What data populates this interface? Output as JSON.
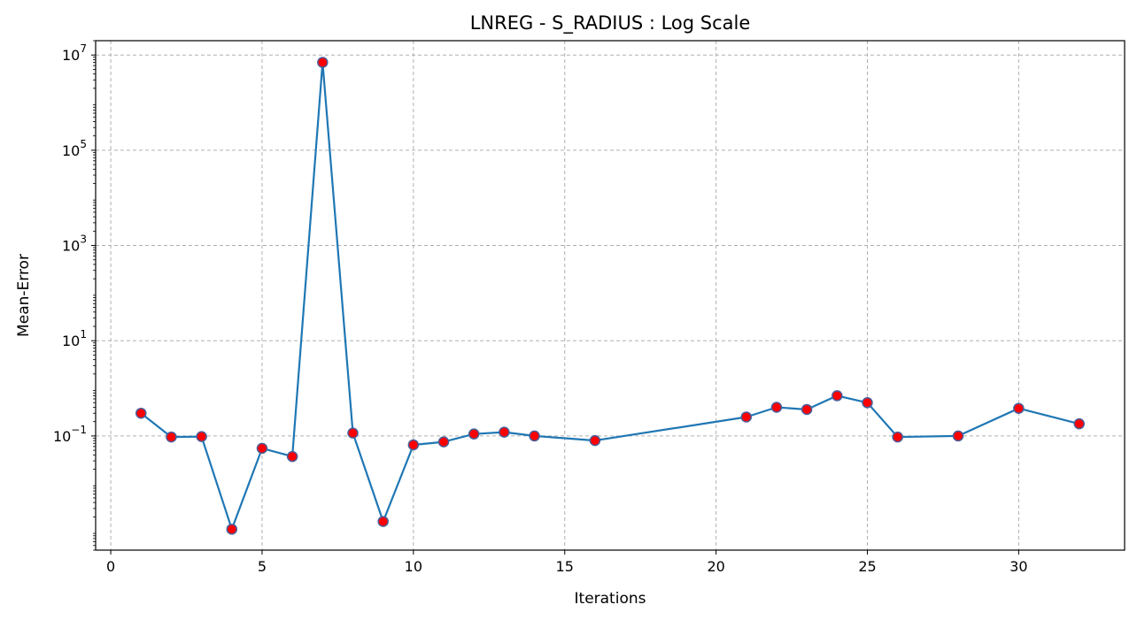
{
  "colors": {
    "line": "#1f77b4",
    "marker_fill": "#ff0000",
    "marker_edge": "#4a5f9a",
    "grid": "#b0b0b0",
    "axes": "#000000"
  },
  "chart_data": {
    "type": "line",
    "title": "LNREG - S_RADIUS : Log Scale",
    "xlabel": "Iterations",
    "ylabel": "Mean-Error",
    "yscale": "log",
    "xlim": [
      -0.5,
      33.5
    ],
    "ylim": [
      0.0004,
      20000000
    ],
    "grid": true,
    "x_ticks": [
      0,
      5,
      10,
      15,
      20,
      25,
      30
    ],
    "y_ticks": [
      {
        "value": 0.1,
        "base": "10",
        "exp": "−1"
      },
      {
        "value": 10,
        "base": "10",
        "exp": "1"
      },
      {
        "value": 1000,
        "base": "10",
        "exp": "3"
      },
      {
        "value": 100000,
        "base": "10",
        "exp": "5"
      },
      {
        "value": 10000000,
        "base": "10",
        "exp": "7"
      }
    ],
    "series": [
      {
        "x": [
          1,
          2,
          3,
          4,
          5,
          6,
          7,
          8,
          9,
          10,
          11,
          12,
          13,
          14,
          16,
          21,
          22,
          23,
          24,
          25,
          26,
          28,
          30,
          32
        ],
        "y": [
          0.3,
          0.095,
          0.097,
          0.0011,
          0.055,
          0.037,
          7000000,
          0.115,
          0.0016,
          0.065,
          0.075,
          0.11,
          0.12,
          0.1,
          0.08,
          0.25,
          0.4,
          0.36,
          0.7,
          0.5,
          0.095,
          0.1,
          0.38,
          0.18
        ]
      }
    ]
  }
}
